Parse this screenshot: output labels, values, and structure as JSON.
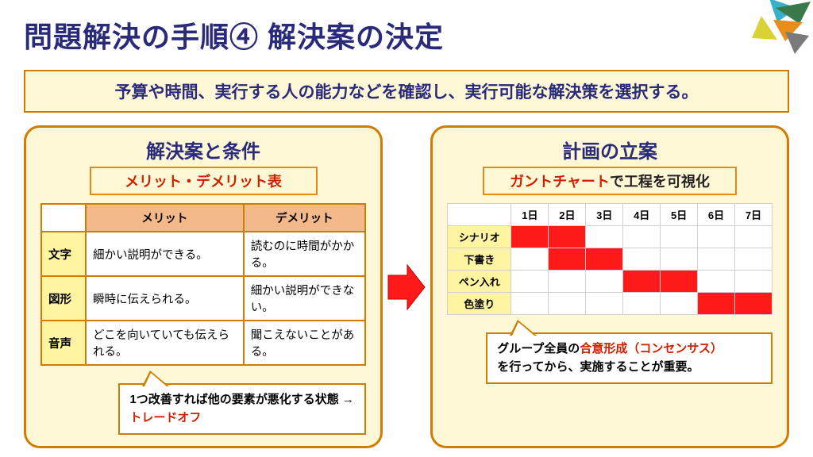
{
  "title": "問題解決の手順④ 解決案の決定",
  "subtitle": "予算や時間、実行する人の能力などを確認し、実行可能な解決策を選択する。",
  "colors": {
    "title_text": "#2a2a7a",
    "panel_bg": "#fff8d6",
    "panel_border": "#d07c00",
    "accent_red": "#d02000",
    "header_orange": "#f4b98a",
    "header_yellow": "#fff5a0",
    "gantt_fill": "#ff1a1a",
    "gantt_grid": "#cfcfcf"
  },
  "left": {
    "panel_title": "解決案と条件",
    "band": "メリット・デメリット表",
    "table": {
      "col_headers": [
        "メリット",
        "デメリット"
      ],
      "rows": [
        {
          "label": "文字",
          "merit": "細かい説明ができる。",
          "demerit": "読むのに時間がかかる。"
        },
        {
          "label": "図形",
          "merit": "瞬時に伝えられる。",
          "demerit": "細かい説明ができない。"
        },
        {
          "label": "音声",
          "merit": "どこを向いていても伝えられる。",
          "demerit": "聞こえないことがある。"
        }
      ]
    },
    "callout": {
      "text_a": "1つ改善すれば他の要素が悪化する状態 → ",
      "text_b": "トレードオフ"
    }
  },
  "right": {
    "panel_title": "計画の立案",
    "band_red": "ガントチャート",
    "band_black": "で工程を可視化",
    "gantt": {
      "days": [
        "1日",
        "2日",
        "3日",
        "4日",
        "5日",
        "6日",
        "7日"
      ],
      "tasks": [
        {
          "label": "シナリオ",
          "cells": [
            1,
            1,
            0,
            0,
            0,
            0,
            0
          ]
        },
        {
          "label": "下書き",
          "cells": [
            0,
            1,
            1,
            0,
            0,
            0,
            0
          ]
        },
        {
          "label": "ペン入れ",
          "cells": [
            0,
            0,
            0,
            1,
            1,
            0,
            0
          ]
        },
        {
          "label": "色塗り",
          "cells": [
            0,
            0,
            0,
            0,
            0,
            1,
            1
          ]
        }
      ]
    },
    "callout": {
      "a": "グループ全員の",
      "b": "合意形成（コンセンサス）",
      "c": "を行ってから、実施することが重要。"
    }
  },
  "logo_colors": [
    "#38b0c9",
    "#3a7a4a",
    "#e88c1a",
    "#d8d234",
    "#7a7a7a"
  ]
}
